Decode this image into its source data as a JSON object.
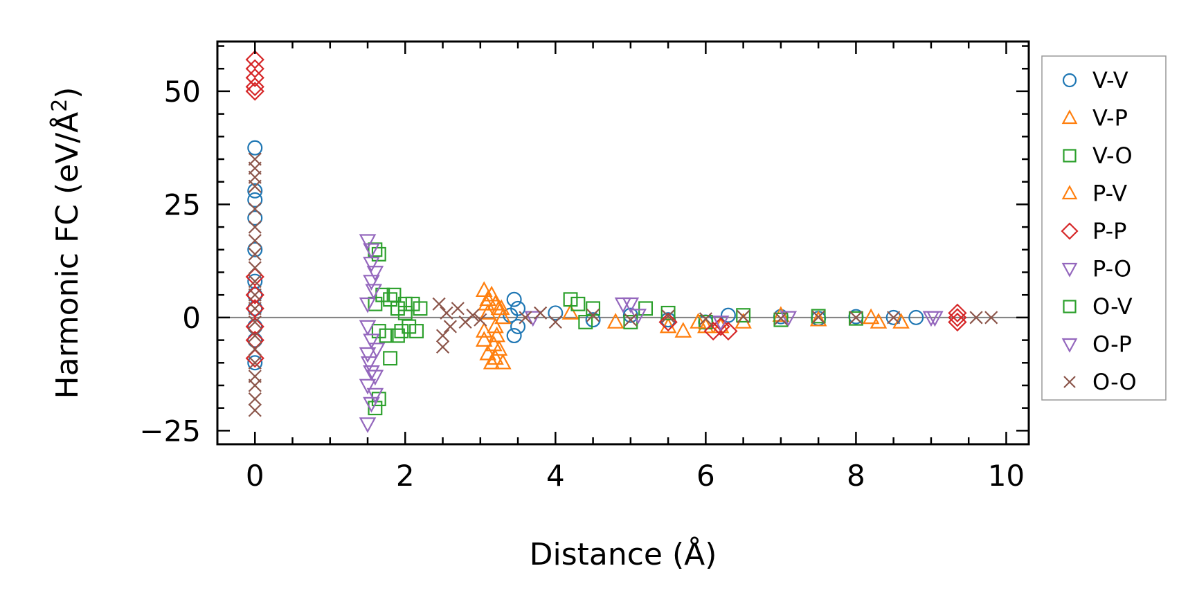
{
  "chart_data": {
    "type": "scatter",
    "title": "",
    "xlabel": "Distance (Å)",
    "ylabel_main": "Harmonic FC (eV/Å",
    "ylabel_sup": "2",
    "ylabel_close": ")",
    "xlim": [
      -0.5,
      10.3
    ],
    "ylim": [
      -28,
      61
    ],
    "xticks": [
      0,
      2,
      4,
      6,
      8,
      10
    ],
    "xtick_labels": [
      "0",
      "2",
      "4",
      "6",
      "8",
      "10"
    ],
    "yticks": [
      -25,
      0,
      25,
      50
    ],
    "ytick_labels": [
      "−25",
      "0",
      "25",
      "50"
    ],
    "zero_line": true,
    "legend_position": "outside-right",
    "series": [
      {
        "name": "V-V",
        "marker": "circle",
        "color": "#1f77b4",
        "points": [
          [
            0,
            37.5
          ],
          [
            0,
            26
          ],
          [
            0,
            28
          ],
          [
            0,
            22
          ],
          [
            0,
            15
          ],
          [
            0,
            8
          ],
          [
            0,
            5
          ],
          [
            0,
            2
          ],
          [
            0,
            -2
          ],
          [
            0,
            -5
          ],
          [
            0,
            -10
          ],
          [
            3.45,
            4
          ],
          [
            3.45,
            -4
          ],
          [
            3.5,
            2
          ],
          [
            3.5,
            -2
          ],
          [
            3.4,
            0.5
          ],
          [
            4.0,
            1
          ],
          [
            4.5,
            -0.5
          ],
          [
            5.0,
            0.5
          ],
          [
            5.5,
            -0.5
          ],
          [
            6.0,
            -1
          ],
          [
            6.3,
            0.5
          ],
          [
            7.0,
            0.2
          ],
          [
            7.5,
            -0.2
          ],
          [
            8.0,
            0.2
          ],
          [
            8.5,
            0
          ],
          [
            8.8,
            0
          ]
        ]
      },
      {
        "name": "V-P",
        "marker": "triangle-up",
        "color": "#ff7f0e",
        "points": [
          [
            3.05,
            6
          ],
          [
            3.1,
            4
          ],
          [
            3.15,
            5
          ],
          [
            3.2,
            3
          ],
          [
            3.25,
            2
          ],
          [
            3.05,
            -5
          ],
          [
            3.1,
            -8
          ],
          [
            3.15,
            -10
          ],
          [
            3.2,
            -9
          ],
          [
            3.25,
            -7
          ],
          [
            3.3,
            -10
          ],
          [
            3.05,
            -3
          ],
          [
            3.2,
            -2
          ],
          [
            3.1,
            1
          ],
          [
            3.3,
            0
          ],
          [
            4.2,
            1
          ],
          [
            4.8,
            -1
          ],
          [
            5.5,
            -2
          ],
          [
            5.7,
            -3
          ],
          [
            6.0,
            -2
          ],
          [
            6.5,
            -1
          ],
          [
            7.0,
            0.5
          ],
          [
            7.5,
            -0.5
          ],
          [
            8.3,
            -1
          ],
          [
            8.6,
            -1
          ]
        ]
      },
      {
        "name": "V-O",
        "marker": "square",
        "color": "#2ca02c",
        "points": [
          [
            1.6,
            15
          ],
          [
            1.65,
            14
          ],
          [
            1.6,
            3
          ],
          [
            1.65,
            -3
          ],
          [
            1.65,
            -18
          ],
          [
            1.6,
            -20
          ],
          [
            1.8,
            -9
          ],
          [
            1.8,
            4
          ],
          [
            1.85,
            5
          ],
          [
            1.9,
            2
          ],
          [
            2.0,
            1
          ],
          [
            2.05,
            -2
          ],
          [
            2.1,
            3
          ],
          [
            2.15,
            -3
          ],
          [
            2.2,
            2
          ],
          [
            1.75,
            -4
          ],
          [
            1.95,
            -3
          ],
          [
            4.2,
            4
          ],
          [
            4.3,
            3
          ],
          [
            4.5,
            2
          ],
          [
            5.0,
            -1
          ],
          [
            5.5,
            1
          ],
          [
            6.0,
            -1
          ],
          [
            6.5,
            0.5
          ],
          [
            7.0,
            -0.5
          ],
          [
            7.5,
            0.3
          ],
          [
            8.0,
            -0.2
          ]
        ]
      },
      {
        "name": "P-V",
        "marker": "triangle-up",
        "color": "#ff7f0e",
        "points": [
          [
            3.08,
            3
          ],
          [
            3.18,
            -6
          ],
          [
            3.22,
            -4
          ],
          [
            3.28,
            2
          ],
          [
            5.9,
            -1
          ],
          [
            6.2,
            -2
          ],
          [
            8.2,
            0
          ]
        ]
      },
      {
        "name": "P-P",
        "marker": "diamond",
        "color": "#d62728",
        "points": [
          [
            0,
            57
          ],
          [
            0,
            55
          ],
          [
            0,
            53
          ],
          [
            0,
            51
          ],
          [
            0,
            50
          ],
          [
            0,
            9
          ],
          [
            0,
            5
          ],
          [
            0,
            2
          ],
          [
            0,
            -2
          ],
          [
            0,
            -5
          ],
          [
            0,
            -9
          ],
          [
            5.5,
            -1
          ],
          [
            6.1,
            -3
          ],
          [
            6.3,
            -3
          ],
          [
            6.2,
            -2
          ],
          [
            9.35,
            0
          ],
          [
            9.35,
            1
          ],
          [
            9.35,
            -1
          ]
        ]
      },
      {
        "name": "P-O",
        "marker": "triangle-down",
        "color": "#9467bd",
        "points": [
          [
            1.5,
            17
          ],
          [
            1.55,
            15
          ],
          [
            1.55,
            12
          ],
          [
            1.6,
            10
          ],
          [
            1.55,
            8
          ],
          [
            1.5,
            3
          ],
          [
            1.5,
            -2
          ],
          [
            1.55,
            -5
          ],
          [
            1.5,
            -8
          ],
          [
            1.55,
            -12
          ],
          [
            1.5,
            -15
          ],
          [
            1.6,
            -17
          ],
          [
            1.55,
            -19
          ],
          [
            1.5,
            -23.5
          ],
          [
            1.6,
            -13
          ],
          [
            4.9,
            3
          ],
          [
            5.0,
            3
          ],
          [
            6.2,
            -1
          ],
          [
            7.1,
            0
          ],
          [
            9.0,
            0
          ],
          [
            9.05,
            0
          ]
        ]
      },
      {
        "name": "O-V",
        "marker": "square",
        "color": "#2ca02c",
        "points": [
          [
            1.7,
            5
          ],
          [
            1.9,
            -4
          ],
          [
            2.0,
            3
          ],
          [
            4.4,
            -1
          ],
          [
            5.2,
            2
          ]
        ]
      },
      {
        "name": "O-P",
        "marker": "triangle-down",
        "color": "#9467bd",
        "points": [
          [
            1.52,
            -10
          ],
          [
            1.58,
            6
          ],
          [
            1.62,
            -7
          ],
          [
            3.7,
            0
          ],
          [
            5.1,
            0.5
          ]
        ]
      },
      {
        "name": "O-O",
        "marker": "x",
        "color": "#8c564b",
        "points": [
          [
            0,
            35
          ],
          [
            0,
            33
          ],
          [
            0,
            31
          ],
          [
            0,
            29
          ],
          [
            0,
            24
          ],
          [
            0,
            20
          ],
          [
            0,
            17
          ],
          [
            0,
            14
          ],
          [
            0,
            11
          ],
          [
            0,
            8
          ],
          [
            0,
            5
          ],
          [
            0,
            2
          ],
          [
            0,
            -1
          ],
          [
            0,
            -4
          ],
          [
            0,
            -7
          ],
          [
            0,
            -10
          ],
          [
            0,
            -13
          ],
          [
            0,
            -15
          ],
          [
            0,
            -18
          ],
          [
            0,
            -20.5
          ],
          [
            2.45,
            3
          ],
          [
            2.5,
            -4
          ],
          [
            2.5,
            -6.5
          ],
          [
            2.55,
            1
          ],
          [
            2.6,
            -2
          ],
          [
            2.7,
            2
          ],
          [
            2.8,
            -1
          ],
          [
            2.9,
            0.5
          ],
          [
            3.0,
            -0.5
          ],
          [
            3.6,
            0
          ],
          [
            3.8,
            1
          ],
          [
            4.0,
            -1
          ],
          [
            4.5,
            0.5
          ],
          [
            5.0,
            -0.5
          ],
          [
            5.5,
            0.3
          ],
          [
            6.0,
            -0.3
          ],
          [
            6.5,
            0.2
          ],
          [
            7.0,
            -0.2
          ],
          [
            7.5,
            0.1
          ],
          [
            8.0,
            0
          ],
          [
            8.5,
            0
          ],
          [
            9.6,
            0
          ],
          [
            9.8,
            0
          ]
        ]
      }
    ]
  }
}
